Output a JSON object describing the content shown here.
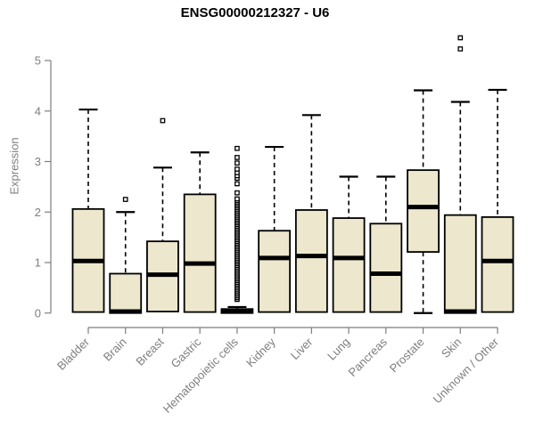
{
  "chart_data": {
    "type": "boxplot",
    "title": "ENSG00000212327 - U6",
    "ylabel": "Expression",
    "xlabel": "",
    "ylim": [
      0,
      5.5
    ],
    "yticks": [
      "0",
      "1",
      "2",
      "3",
      "4",
      "5"
    ],
    "grid": false,
    "legend": "none",
    "categories": [
      "Bladder",
      "Brain",
      "Breast",
      "Gastric",
      "Hematopoietic cells",
      "Kidney",
      "Liver",
      "Lung",
      "Pancreas",
      "Prostate",
      "Skin",
      "Unknown / Other"
    ],
    "series": [
      {
        "name": "Bladder",
        "min": 0.02,
        "q1": 0.02,
        "median": 1.03,
        "q3": 2.06,
        "max": 4.03,
        "outliers": []
      },
      {
        "name": "Brain",
        "min": 0.0,
        "q1": 0.0,
        "median": 0.03,
        "q3": 0.78,
        "max": 2.0,
        "outliers": [
          2.25
        ]
      },
      {
        "name": "Breast",
        "min": 0.03,
        "q1": 0.03,
        "median": 0.76,
        "q3": 1.42,
        "max": 2.88,
        "outliers": [
          3.81
        ]
      },
      {
        "name": "Gastric",
        "min": 0.02,
        "q1": 0.02,
        "median": 0.98,
        "q3": 2.35,
        "max": 3.18,
        "outliers": []
      },
      {
        "name": "Hematopoietic cells",
        "min": 0.0,
        "q1": 0.0,
        "median": 0.03,
        "q3": 0.08,
        "max": 0.12,
        "outliers": [
          2.38,
          2.56,
          2.67,
          2.72,
          2.78,
          2.85,
          2.97,
          3.08,
          3.26
        ],
        "outliers_dense": {
          "min": 0.27,
          "max": 2.26,
          "count": 60
        }
      },
      {
        "name": "Kidney",
        "min": 0.02,
        "q1": 0.02,
        "median": 1.09,
        "q3": 1.63,
        "max": 3.29,
        "outliers": []
      },
      {
        "name": "Liver",
        "min": 0.02,
        "q1": 0.02,
        "median": 1.13,
        "q3": 2.04,
        "max": 3.92,
        "outliers": []
      },
      {
        "name": "Lung",
        "min": 0.02,
        "q1": 0.02,
        "median": 1.09,
        "q3": 1.88,
        "max": 2.7,
        "outliers": []
      },
      {
        "name": "Pancreas",
        "min": 0.02,
        "q1": 0.02,
        "median": 0.78,
        "q3": 1.77,
        "max": 2.7,
        "outliers": []
      },
      {
        "name": "Prostate",
        "min": 0.0,
        "q1": 1.21,
        "median": 2.1,
        "q3": 2.83,
        "max": 4.41,
        "outliers": []
      },
      {
        "name": "Skin",
        "min": 0.0,
        "q1": 0.0,
        "median": 0.03,
        "q3": 1.94,
        "max": 4.18,
        "outliers": [
          5.23,
          5.45
        ]
      },
      {
        "name": "Unknown / Other",
        "min": 0.02,
        "q1": 0.02,
        "median": 1.03,
        "q3": 1.9,
        "max": 4.42,
        "outliers": []
      }
    ],
    "colors": {
      "box_fill": "#EDE7CD",
      "box_border": "#000000",
      "median": "#000000",
      "whisker": "#000000",
      "axis": "#7e7e7e",
      "tick_label": "#7e7e7e",
      "title": "#000000",
      "background": "#ffffff"
    }
  }
}
